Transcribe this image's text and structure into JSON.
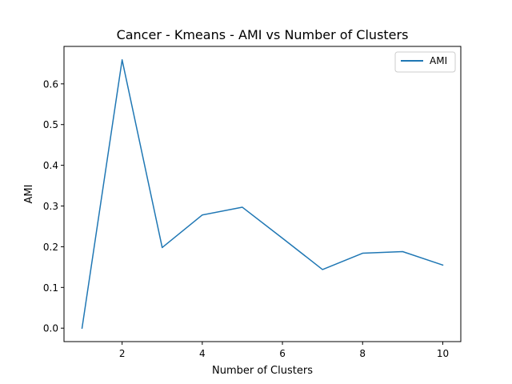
{
  "chart_data": {
    "type": "line",
    "title": "Cancer - Kmeans - AMI vs Number of Clusters",
    "xlabel": "Number of Clusters",
    "ylabel": "AMI",
    "xlim": [
      0.55,
      10.45
    ],
    "ylim": [
      -0.033,
      0.692
    ],
    "xticks": [
      2,
      4,
      6,
      8,
      10
    ],
    "yticks": [
      0.0,
      0.1,
      0.2,
      0.3,
      0.4,
      0.5,
      0.6
    ],
    "xtick_labels": [
      "2",
      "4",
      "6",
      "8",
      "10"
    ],
    "ytick_labels": [
      "0.0",
      "0.1",
      "0.2",
      "0.3",
      "0.4",
      "0.5",
      "0.6"
    ],
    "grid": false,
    "legend_position": "top-right",
    "series": [
      {
        "name": "AMI",
        "color": "#1f77b4",
        "x": [
          1,
          2,
          3,
          4,
          5,
          6,
          7,
          8,
          9,
          10
        ],
        "y": [
          0.0,
          0.659,
          0.198,
          0.278,
          0.297,
          0.221,
          0.144,
          0.184,
          0.188,
          0.155
        ]
      }
    ]
  }
}
